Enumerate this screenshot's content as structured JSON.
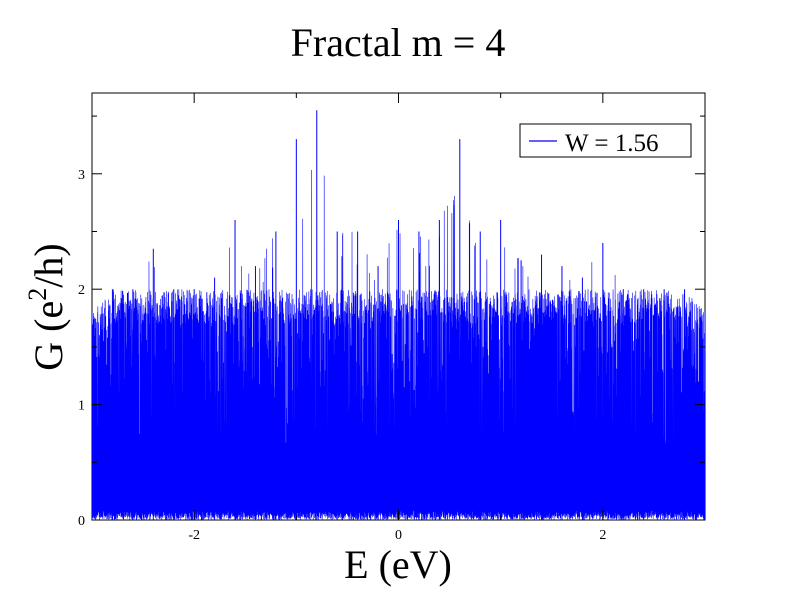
{
  "chart_data": {
    "type": "line",
    "title": "Fractal m = 4",
    "xlabel": "E (eV)",
    "ylabel_base": "G (e",
    "ylabel_sup": "2",
    "ylabel_tail": "/h)",
    "xlim": [
      -3.0,
      3.0
    ],
    "ylim": [
      0,
      3.7
    ],
    "xticks": [
      -2,
      0,
      2
    ],
    "xtick_labels": [
      "-2",
      "0",
      "2"
    ],
    "yticks": [
      0,
      1,
      2,
      3
    ],
    "ytick_labels": [
      "0",
      "1",
      "2",
      "3"
    ],
    "grid": false,
    "legend_position": "top-right",
    "series": [
      {
        "name": "W = 1.56",
        "color": "#0000ff",
        "sampled_envelope": {
          "x": [
            -3.0,
            -2.8,
            -2.6,
            -2.4,
            -2.2,
            -2.0,
            -1.8,
            -1.6,
            -1.4,
            -1.2,
            -1.0,
            -0.8,
            -0.6,
            -0.4,
            -0.2,
            0.0,
            0.2,
            0.4,
            0.6,
            0.8,
            1.0,
            1.2,
            1.4,
            1.6,
            1.8,
            2.0,
            2.2,
            2.4,
            2.6,
            2.8,
            3.0
          ],
          "max": [
            1.8,
            2.0,
            2.0,
            2.35,
            2.0,
            2.0,
            2.1,
            2.6,
            2.2,
            2.5,
            3.3,
            3.55,
            2.5,
            2.5,
            2.2,
            2.6,
            2.5,
            2.6,
            3.3,
            2.5,
            2.6,
            2.25,
            2.3,
            2.2,
            2.1,
            2.4,
            2.0,
            2.0,
            2.0,
            2.0,
            1.8
          ],
          "min": [
            0.0,
            0.0,
            0.0,
            0.0,
            0.0,
            0.0,
            0.0,
            0.0,
            0.0,
            0.0,
            0.0,
            0.0,
            0.0,
            0.0,
            0.0,
            0.0,
            0.0,
            0.0,
            0.0,
            0.0,
            0.0,
            0.0,
            0.0,
            0.0,
            0.0,
            0.0,
            0.0,
            0.0,
            0.0,
            0.0,
            0.0
          ]
        }
      }
    ]
  }
}
